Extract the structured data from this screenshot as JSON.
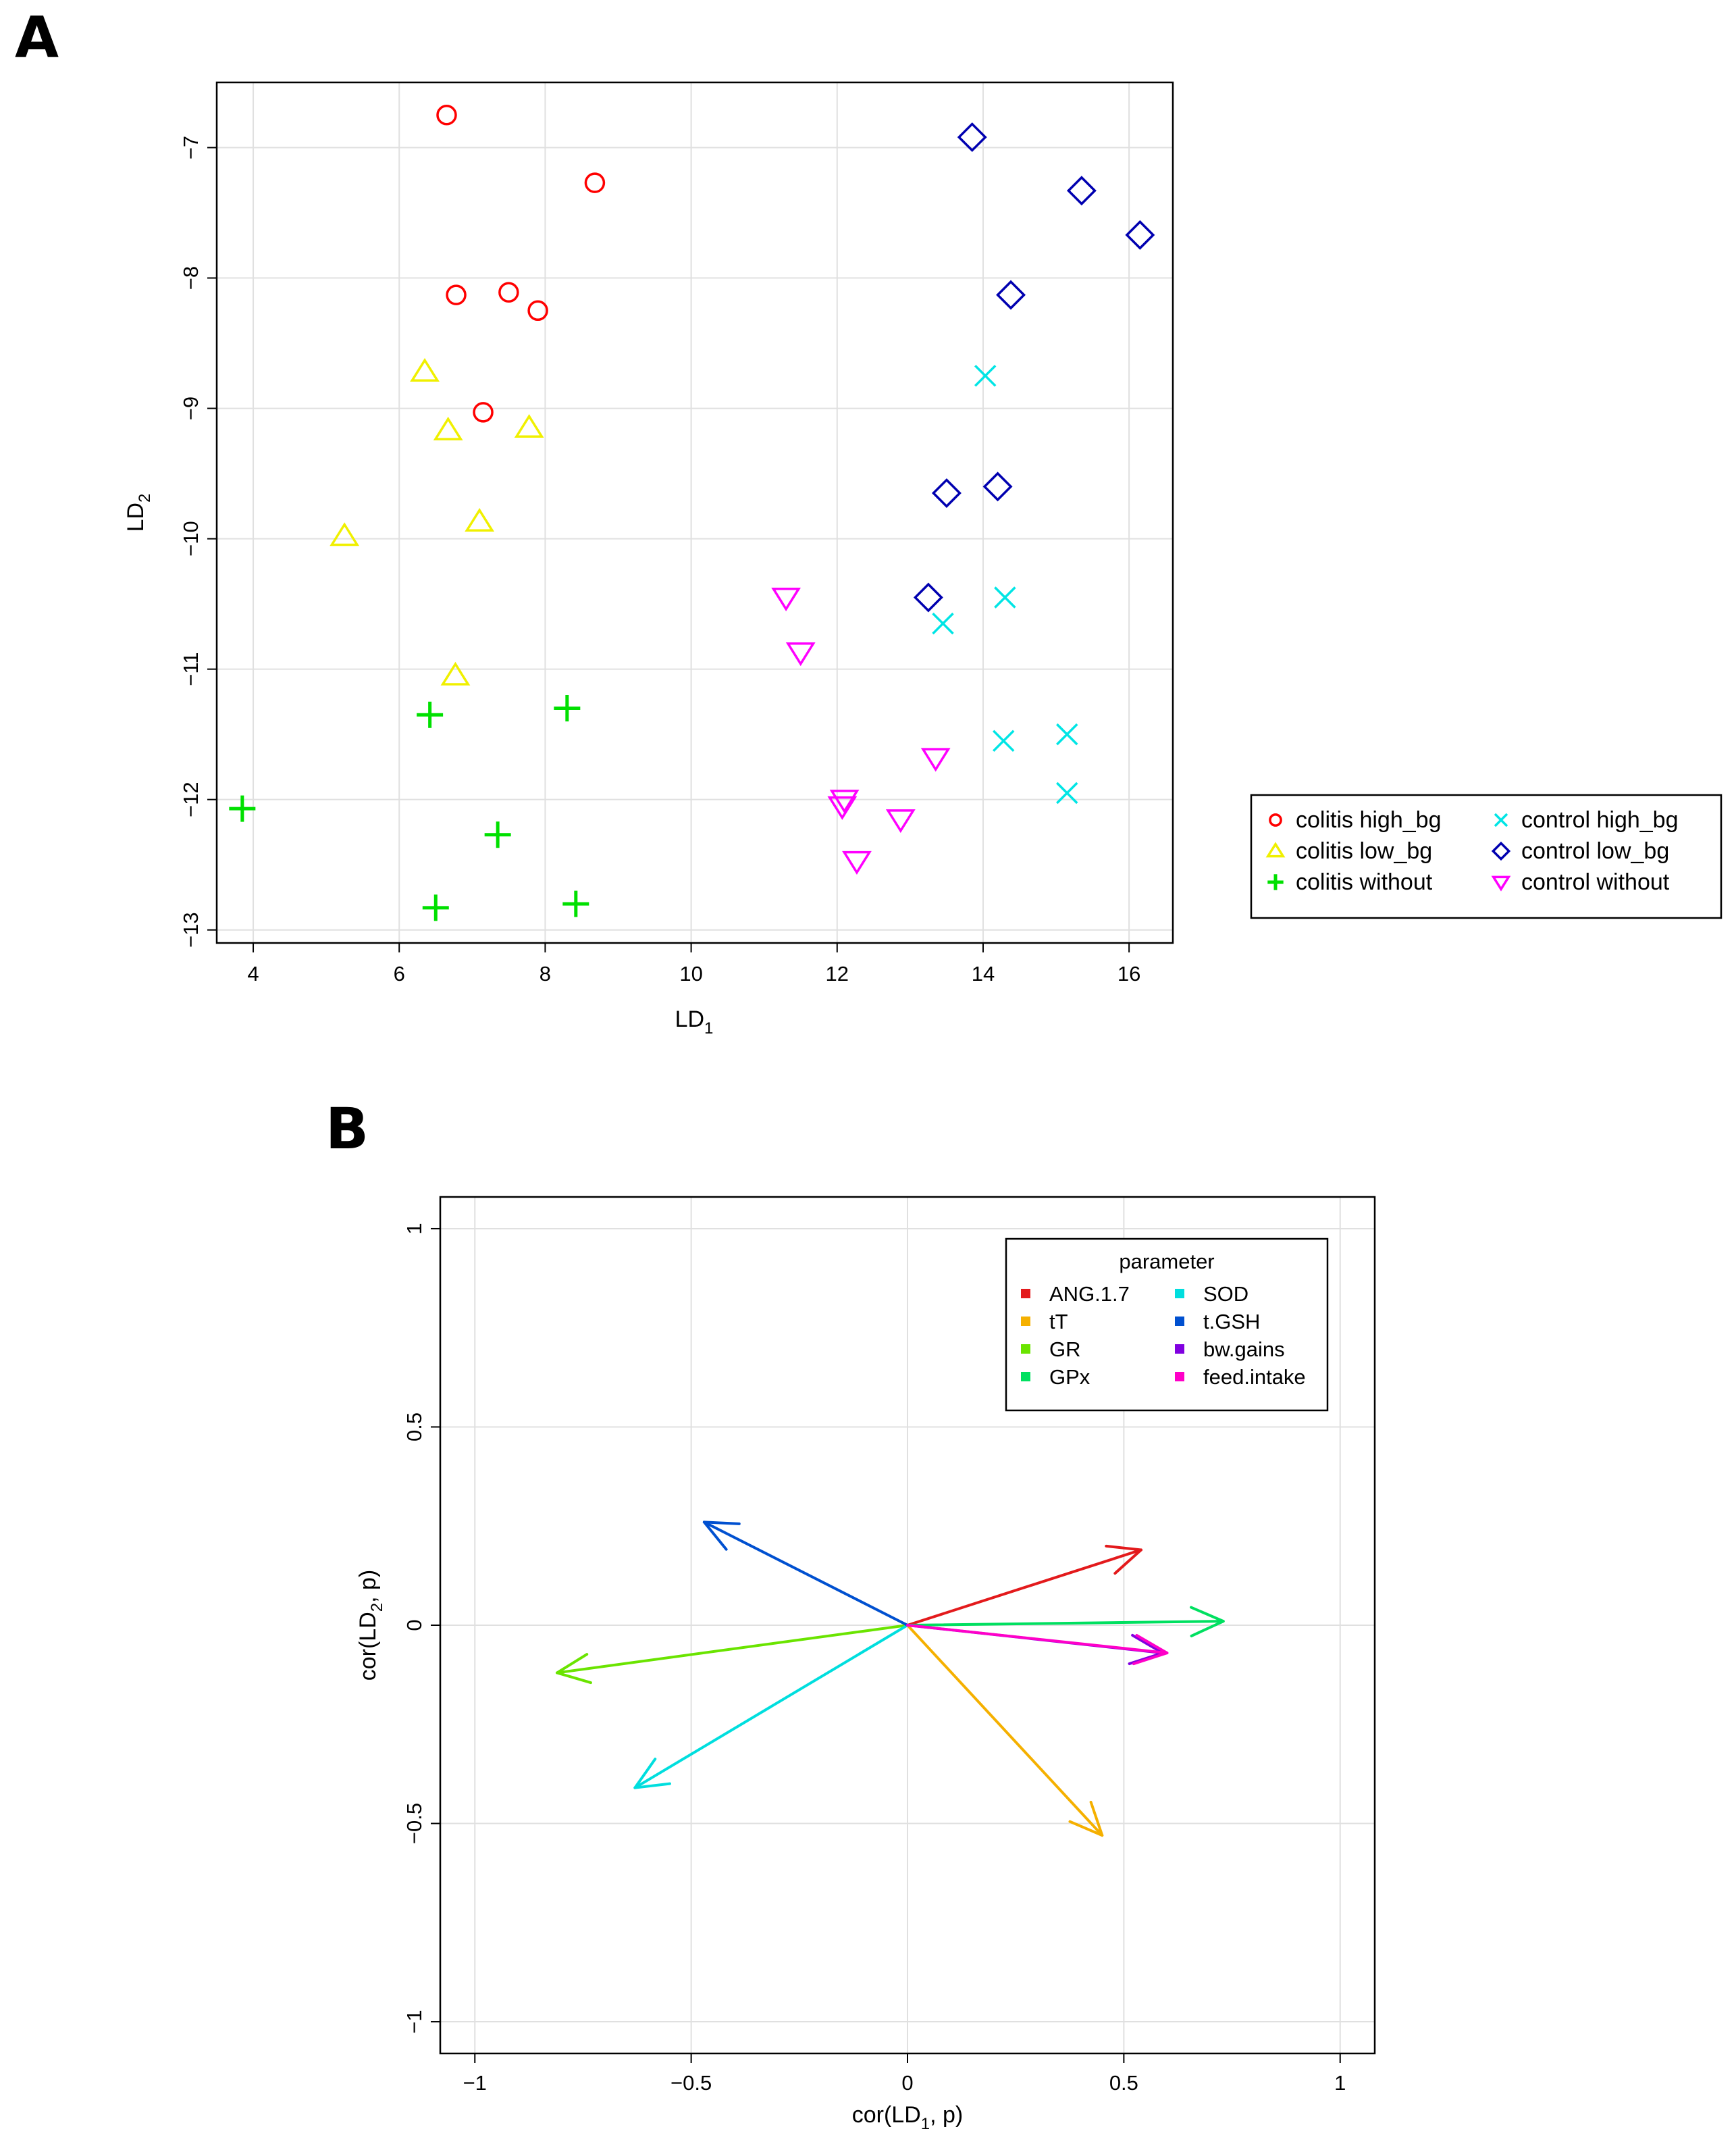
{
  "panels": {
    "a_label": "A",
    "b_label": "B"
  },
  "chart_data": [
    {
      "type": "scatter",
      "panel": "A",
      "xlabel_main": "LD",
      "xlabel_sub": "1",
      "ylabel_main": "LD",
      "ylabel_sub": "2",
      "xlim": [
        3.5,
        16.6
      ],
      "ylim": [
        -13.1,
        -6.5
      ],
      "xticks": [
        4,
        6,
        8,
        10,
        12,
        14,
        16
      ],
      "yticks": [
        -13,
        -12,
        -11,
        -10,
        -9,
        -8,
        -7
      ],
      "grid": true,
      "legend_position": "right",
      "series": [
        {
          "name": "colitis high_bg",
          "color": "#ff0000",
          "marker": "circle",
          "points": [
            [
              6.65,
              -6.75
            ],
            [
              8.68,
              -7.27
            ],
            [
              6.78,
              -8.13
            ],
            [
              7.5,
              -8.11
            ],
            [
              7.9,
              -8.25
            ],
            [
              7.15,
              -9.03
            ]
          ]
        },
        {
          "name": "colitis low_bg",
          "color": "#f0f000",
          "marker": "triangle-up",
          "points": [
            [
              6.35,
              -8.72
            ],
            [
              6.67,
              -9.17
            ],
            [
              7.78,
              -9.15
            ],
            [
              7.1,
              -9.87
            ],
            [
              5.25,
              -9.98
            ],
            [
              6.77,
              -11.05
            ]
          ]
        },
        {
          "name": "colitis without",
          "color": "#00e000",
          "marker": "plus",
          "points": [
            [
              6.42,
              -11.35
            ],
            [
              8.3,
              -11.3
            ],
            [
              3.85,
              -12.07
            ],
            [
              7.35,
              -12.27
            ],
            [
              6.5,
              -12.83
            ],
            [
              8.42,
              -12.8
            ]
          ]
        },
        {
          "name": "control high_bg",
          "color": "#00e5e5",
          "marker": "x",
          "points": [
            [
              14.03,
              -8.75
            ],
            [
              14.3,
              -10.45
            ],
            [
              13.45,
              -10.65
            ],
            [
              14.28,
              -11.55
            ],
            [
              15.15,
              -11.5
            ],
            [
              15.15,
              -11.95
            ]
          ]
        },
        {
          "name": "control low_bg",
          "color": "#0000b0",
          "marker": "diamond",
          "points": [
            [
              13.85,
              -6.92
            ],
            [
              15.35,
              -7.33
            ],
            [
              16.15,
              -7.67
            ],
            [
              14.38,
              -8.13
            ],
            [
              14.2,
              -9.6
            ],
            [
              13.5,
              -9.65
            ],
            [
              13.25,
              -10.45
            ]
          ]
        },
        {
          "name": "control without",
          "color": "#ff00ff",
          "marker": "triangle-down",
          "points": [
            [
              11.3,
              -10.45
            ],
            [
              11.5,
              -10.87
            ],
            [
              13.35,
              -11.68
            ],
            [
              12.1,
              -12.0
            ],
            [
              12.07,
              -12.05
            ],
            [
              12.87,
              -12.15
            ],
            [
              12.27,
              -12.47
            ]
          ]
        }
      ]
    },
    {
      "type": "vector",
      "panel": "B",
      "xlabel_main": "cor(LD",
      "xlabel_sub": "1",
      "xlabel_end": ", p)",
      "ylabel_main": "cor(LD",
      "ylabel_sub": "2",
      "ylabel_end": ", p)",
      "xlim": [
        -1.08,
        1.08
      ],
      "ylim": [
        -1.08,
        1.08
      ],
      "xticks": [
        -1,
        -0.5,
        0,
        0.5,
        1
      ],
      "xtick_labels": [
        "−1",
        "−0.5",
        "0",
        "0.5",
        "1"
      ],
      "yticks": [
        -1,
        -0.5,
        0,
        0.5,
        1
      ],
      "ytick_labels": [
        "−1",
        "−0.5",
        "0",
        "0.5",
        "1"
      ],
      "grid": true,
      "legend_title": "parameter",
      "legend_position": "top-right",
      "series": [
        {
          "name": "ANG.1.7",
          "color": "#e31a1c",
          "x": 0.54,
          "y": 0.19
        },
        {
          "name": "tT",
          "color": "#f5b000",
          "x": 0.45,
          "y": -0.53
        },
        {
          "name": "GR",
          "color": "#6ae400",
          "x": -0.81,
          "y": -0.12
        },
        {
          "name": "GPx",
          "color": "#00e060",
          "x": 0.73,
          "y": 0.01
        },
        {
          "name": "SOD",
          "color": "#00dede",
          "x": -0.63,
          "y": -0.41
        },
        {
          "name": "t.GSH",
          "color": "#0050d0",
          "x": -0.47,
          "y": 0.26
        },
        {
          "name": "bw.gains",
          "color": "#8000e0",
          "x": 0.59,
          "y": -0.07
        },
        {
          "name": "feed.intake",
          "color": "#ff00c8",
          "x": 0.6,
          "y": -0.07
        }
      ]
    }
  ]
}
